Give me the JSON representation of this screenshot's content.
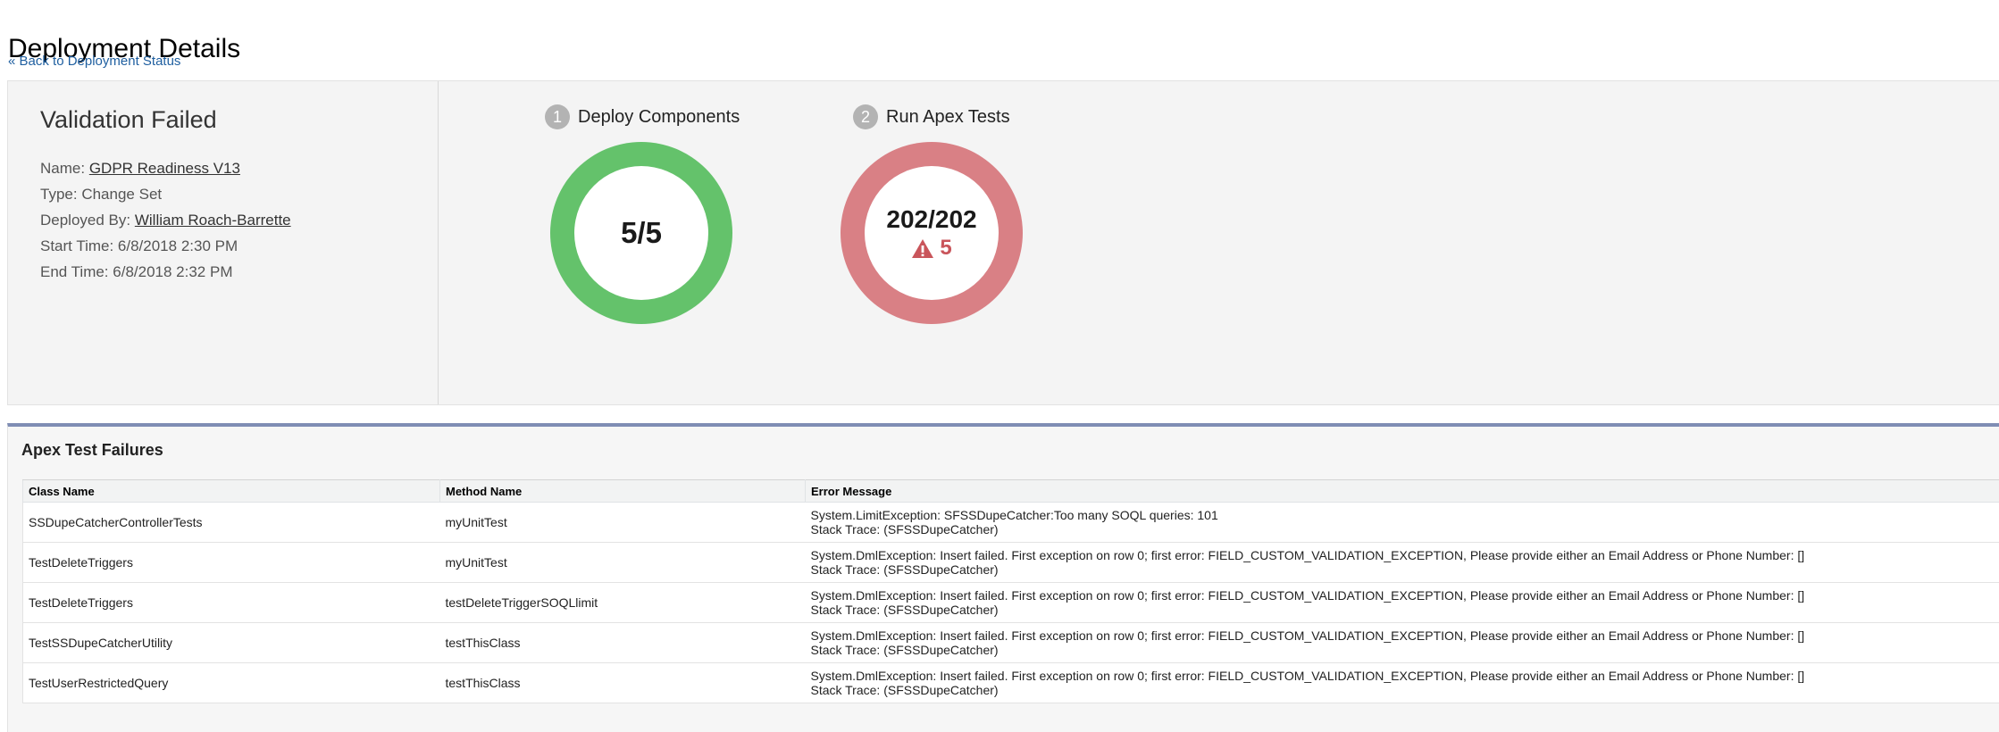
{
  "page_title": "Deployment Details",
  "back_link": "« Back to Deployment Status",
  "summary": {
    "status": "Validation Failed",
    "name_label": "Name:",
    "name_value": "GDPR Readiness V13",
    "type_label": "Type:",
    "type_value": "Change Set",
    "deployed_by_label": "Deployed By:",
    "deployed_by_value": "William Roach-Barrette",
    "start_label": "Start Time:",
    "start_value": "6/8/2018 2:30 PM",
    "end_label": "End Time:",
    "end_value": "6/8/2018 2:32 PM"
  },
  "steps": [
    {
      "number": "1",
      "label": "Deploy Components",
      "value": "5/5",
      "color": "#64c26b"
    },
    {
      "number": "2",
      "label": "Run Apex Tests",
      "value": "202/202",
      "warning_count": "5",
      "color": "#d98085",
      "warning_color": "#c9555b"
    }
  ],
  "failures": {
    "title": "Apex Test Failures",
    "columns": [
      "Class Name",
      "Method Name",
      "Error Message"
    ],
    "rows": [
      {
        "class": "SSDupeCatcherControllerTests",
        "method": "myUnitTest",
        "error": "System.LimitException: SFSSDupeCatcher:Too many SOQL queries: 101",
        "trace": "Stack Trace: (SFSSDupeCatcher)"
      },
      {
        "class": "TestDeleteTriggers",
        "method": "myUnitTest",
        "error": "System.DmlException: Insert failed. First exception on row 0; first error: FIELD_CUSTOM_VALIDATION_EXCEPTION, Please provide either an Email Address or Phone Number: []",
        "trace": "Stack Trace: (SFSSDupeCatcher)"
      },
      {
        "class": "TestDeleteTriggers",
        "method": "testDeleteTriggerSOQLlimit",
        "error": "System.DmlException: Insert failed. First exception on row 0; first error: FIELD_CUSTOM_VALIDATION_EXCEPTION, Please provide either an Email Address or Phone Number: []",
        "trace": "Stack Trace: (SFSSDupeCatcher)"
      },
      {
        "class": "TestSSDupeCatcherUtility",
        "method": "testThisClass",
        "error": "System.DmlException: Insert failed. First exception on row 0; first error: FIELD_CUSTOM_VALIDATION_EXCEPTION, Please provide either an Email Address or Phone Number: []",
        "trace": "Stack Trace: (SFSSDupeCatcher)"
      },
      {
        "class": "TestUserRestrictedQuery",
        "method": "testThisClass",
        "error": "System.DmlException: Insert failed. First exception on row 0; first error: FIELD_CUSTOM_VALIDATION_EXCEPTION, Please provide either an Email Address or Phone Number: []",
        "trace": "Stack Trace: (SFSSDupeCatcher)"
      }
    ]
  }
}
